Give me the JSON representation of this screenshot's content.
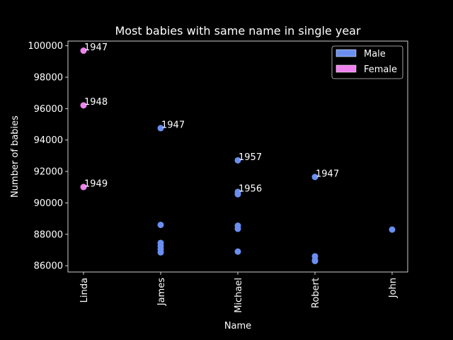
{
  "chart_data": {
    "type": "scatter",
    "title": "Most babies with same name in single year",
    "xlabel": "Name",
    "ylabel": "Number of babies",
    "categories": [
      "Linda",
      "James",
      "Michael",
      "Robert",
      "John"
    ],
    "ylim": [
      85600,
      100300
    ],
    "yticks": [
      86000,
      88000,
      90000,
      92000,
      94000,
      96000,
      98000,
      100000
    ],
    "ytick_labels": [
      "86000",
      "88000",
      "90000",
      "92000",
      "94000",
      "96000",
      "98000",
      "100000"
    ],
    "grid": false,
    "legend_position": "top-right",
    "background": "#000000",
    "colors": {
      "Male": "#6b8ff0",
      "Female": "#ee82ee"
    },
    "series": [
      {
        "name": "Male",
        "points": [
          {
            "x": "James",
            "y": 94757,
            "label": "1947"
          },
          {
            "x": "James",
            "y": 88600
          },
          {
            "x": "James",
            "y": 87450
          },
          {
            "x": "James",
            "y": 87250
          },
          {
            "x": "James",
            "y": 87050
          },
          {
            "x": "James",
            "y": 86850
          },
          {
            "x": "Michael",
            "y": 92710,
            "label": "1957"
          },
          {
            "x": "Michael",
            "y": 90700,
            "label": "1956"
          },
          {
            "x": "Michael",
            "y": 90550
          },
          {
            "x": "Michael",
            "y": 88550
          },
          {
            "x": "Michael",
            "y": 88350
          },
          {
            "x": "Michael",
            "y": 86900
          },
          {
            "x": "Robert",
            "y": 91650,
            "label": "1947"
          },
          {
            "x": "Robert",
            "y": 86600
          },
          {
            "x": "Robert",
            "y": 86350
          },
          {
            "x": "Robert",
            "y": 86300
          },
          {
            "x": "John",
            "y": 88300
          }
        ]
      },
      {
        "name": "Female",
        "points": [
          {
            "x": "Linda",
            "y": 99690,
            "label": "1947"
          },
          {
            "x": "Linda",
            "y": 96210,
            "label": "1948"
          },
          {
            "x": "Linda",
            "y": 91010,
            "label": "1949"
          }
        ]
      }
    ]
  }
}
